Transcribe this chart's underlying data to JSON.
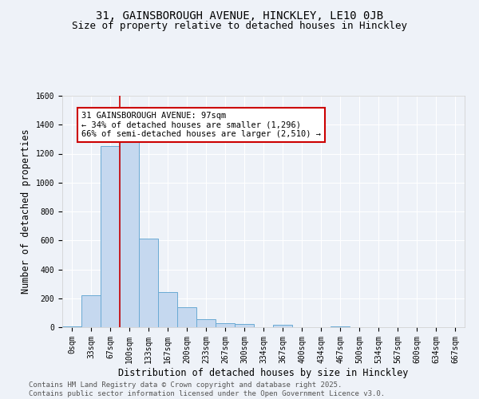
{
  "title_line1": "31, GAINSBOROUGH AVENUE, HINCKLEY, LE10 0JB",
  "title_line2": "Size of property relative to detached houses in Hinckley",
  "bar_labels": [
    "0sqm",
    "33sqm",
    "67sqm",
    "100sqm",
    "133sqm",
    "167sqm",
    "200sqm",
    "233sqm",
    "267sqm",
    "300sqm",
    "334sqm",
    "367sqm",
    "400sqm",
    "434sqm",
    "467sqm",
    "500sqm",
    "534sqm",
    "567sqm",
    "600sqm",
    "634sqm",
    "667sqm"
  ],
  "bar_values": [
    8,
    220,
    1250,
    1300,
    610,
    245,
    140,
    55,
    30,
    20,
    0,
    15,
    0,
    0,
    8,
    0,
    0,
    0,
    0,
    0,
    0
  ],
  "bar_color": "#c5d8ef",
  "bar_edge_color": "#6aaad4",
  "xlabel": "Distribution of detached houses by size in Hinckley",
  "ylabel": "Number of detached properties",
  "ylim": [
    0,
    1600
  ],
  "yticks": [
    0,
    200,
    400,
    600,
    800,
    1000,
    1200,
    1400,
    1600
  ],
  "vline_x": 2.5,
  "vline_color": "#cc0000",
  "annotation_text": "31 GAINSBOROUGH AVENUE: 97sqm\n← 34% of detached houses are smaller (1,296)\n66% of semi-detached houses are larger (2,510) →",
  "annotation_box_color": "#ffffff",
  "annotation_box_edge": "#cc0000",
  "footer_line1": "Contains HM Land Registry data © Crown copyright and database right 2025.",
  "footer_line2": "Contains public sector information licensed under the Open Government Licence v3.0.",
  "background_color": "#eef2f8",
  "grid_color": "#ffffff",
  "title_fontsize": 10,
  "subtitle_fontsize": 9,
  "label_fontsize": 8.5,
  "tick_fontsize": 7,
  "annot_fontsize": 7.5,
  "footer_fontsize": 6.5
}
